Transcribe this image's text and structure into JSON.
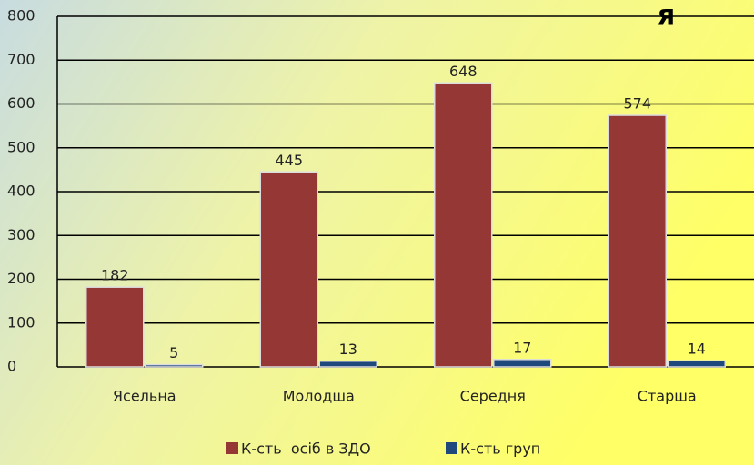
{
  "chart_data": {
    "type": "bar",
    "annotation": "я",
    "categories": [
      "Ясельна",
      "Молодша",
      "Середня",
      "Старша"
    ],
    "series": [
      {
        "name": "К-сть  осіб в ЗДО",
        "color": "#953735",
        "values": [
          182,
          445,
          648,
          574
        ]
      },
      {
        "name": "К-сть груп",
        "color": "#1f497d",
        "values": [
          5,
          13,
          17,
          14
        ]
      }
    ],
    "ylim": [
      0,
      800
    ],
    "yticks": [
      0,
      100,
      200,
      300,
      400,
      500,
      600,
      700,
      800
    ],
    "grid": true,
    "legend": "bottom"
  }
}
